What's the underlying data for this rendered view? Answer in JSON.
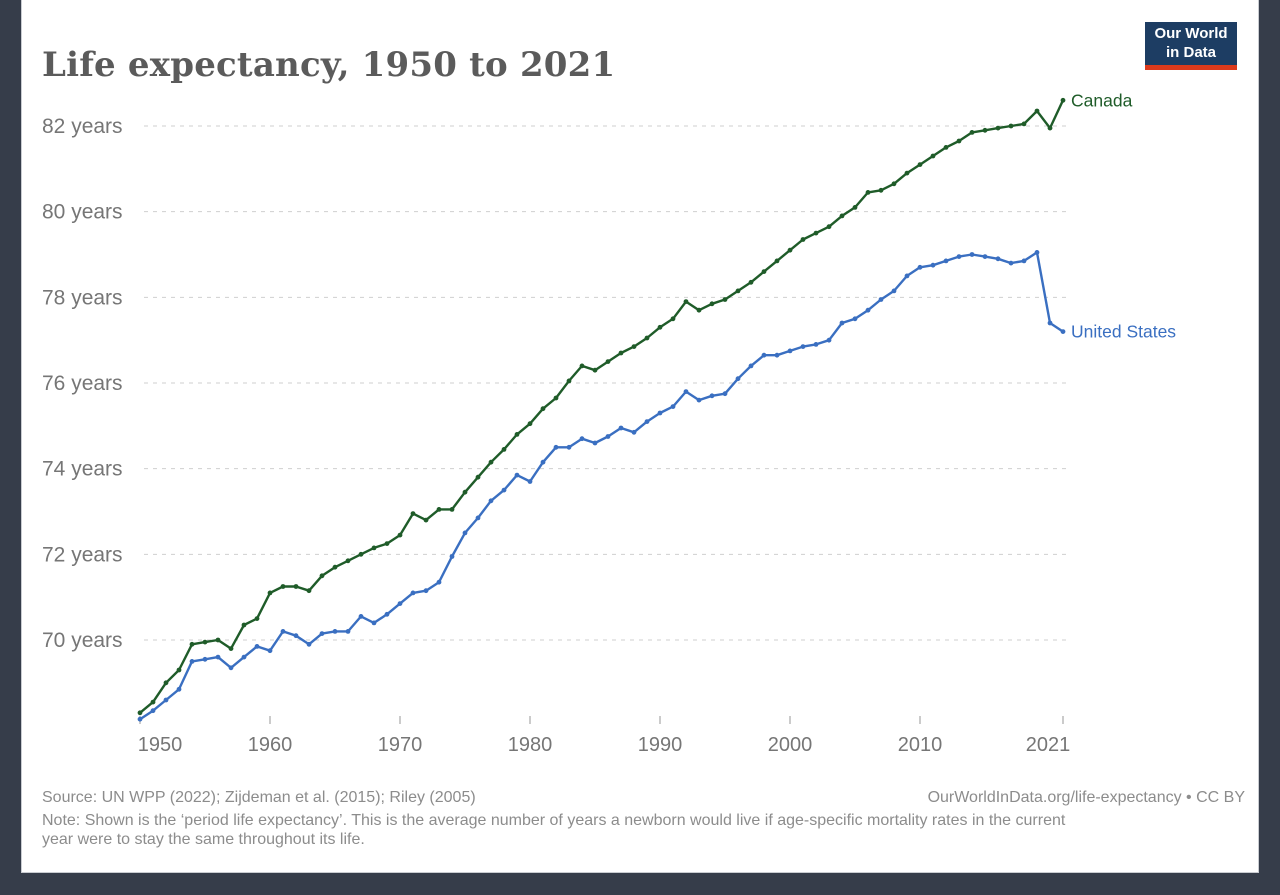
{
  "page": {
    "background_color": "#363d4a",
    "card_color": "#ffffff"
  },
  "header": {
    "title": "Life expectancy, 1950 to 2021",
    "logo": {
      "line1": "Our World",
      "line2": "in Data",
      "bg": "#1d3d63",
      "accent": "#dc3a1c",
      "text_color": "#ffffff"
    }
  },
  "chart_data": {
    "type": "line",
    "title": "Life expectancy, 1950 to 2021",
    "xlabel": "",
    "ylabel": "years",
    "ylim": [
      68,
      83
    ],
    "yticks": [
      70,
      72,
      74,
      76,
      78,
      80,
      82
    ],
    "ytick_suffix": " years",
    "xticks": [
      1950,
      1960,
      1970,
      1980,
      1990,
      2000,
      2010,
      2021
    ],
    "grid": "horizontal-dashed",
    "legend_position": "line-end-labels",
    "x": [
      1950,
      1951,
      1952,
      1953,
      1954,
      1955,
      1956,
      1957,
      1958,
      1959,
      1960,
      1961,
      1962,
      1963,
      1964,
      1965,
      1966,
      1967,
      1968,
      1969,
      1970,
      1971,
      1972,
      1973,
      1974,
      1975,
      1976,
      1977,
      1978,
      1979,
      1980,
      1981,
      1982,
      1983,
      1984,
      1985,
      1986,
      1987,
      1988,
      1989,
      1990,
      1991,
      1992,
      1993,
      1994,
      1995,
      1996,
      1997,
      1998,
      1999,
      2000,
      2001,
      2002,
      2003,
      2004,
      2005,
      2006,
      2007,
      2008,
      2009,
      2010,
      2011,
      2012,
      2013,
      2014,
      2015,
      2016,
      2017,
      2018,
      2019,
      2020,
      2021
    ],
    "series": [
      {
        "name": "Canada",
        "color": "#1f5c29",
        "values": [
          68.3,
          68.55,
          69.0,
          69.3,
          69.9,
          69.95,
          70.0,
          69.8,
          70.35,
          70.5,
          71.1,
          71.25,
          71.25,
          71.15,
          71.5,
          71.7,
          71.85,
          72.0,
          72.15,
          72.25,
          72.45,
          72.95,
          72.8,
          73.05,
          73.05,
          73.45,
          73.8,
          74.15,
          74.45,
          74.8,
          75.05,
          75.4,
          75.65,
          76.05,
          76.4,
          76.3,
          76.5,
          76.7,
          76.85,
          77.05,
          77.3,
          77.5,
          77.9,
          77.7,
          77.85,
          77.95,
          78.15,
          78.35,
          78.6,
          78.85,
          79.1,
          79.35,
          79.5,
          79.65,
          79.9,
          80.1,
          80.45,
          80.5,
          80.65,
          80.9,
          81.1,
          81.3,
          81.5,
          81.65,
          81.85,
          81.9,
          81.95,
          82.0,
          82.05,
          82.35,
          81.95,
          82.6
        ]
      },
      {
        "name": "United States",
        "color": "#3a6fc1",
        "values": [
          68.15,
          68.35,
          68.6,
          68.85,
          69.5,
          69.55,
          69.6,
          69.35,
          69.6,
          69.85,
          69.75,
          70.2,
          70.1,
          69.9,
          70.15,
          70.2,
          70.2,
          70.55,
          70.4,
          70.6,
          70.85,
          71.1,
          71.15,
          71.35,
          71.95,
          72.5,
          72.85,
          73.25,
          73.5,
          73.85,
          73.7,
          74.15,
          74.5,
          74.5,
          74.7,
          74.6,
          74.75,
          74.95,
          74.85,
          75.1,
          75.3,
          75.45,
          75.8,
          75.6,
          75.7,
          75.75,
          76.1,
          76.4,
          76.65,
          76.65,
          76.75,
          76.85,
          76.9,
          77.0,
          77.4,
          77.5,
          77.7,
          77.95,
          78.15,
          78.5,
          78.7,
          78.75,
          78.85,
          78.95,
          79.0,
          78.95,
          78.9,
          78.8,
          78.85,
          79.05,
          77.4,
          77.2
        ]
      }
    ]
  },
  "footer": {
    "source": "Source: UN WPP (2022); Zijdeman et al. (2015); Riley (2005)",
    "attribution": "OurWorldInData.org/life-expectancy • CC BY",
    "note_line1": "Note: Shown is the ‘period life expectancy’. This is the average number of years a newborn would live if age-specific mortality rates in the current",
    "note_line2": "year were to stay the same throughout its life."
  }
}
